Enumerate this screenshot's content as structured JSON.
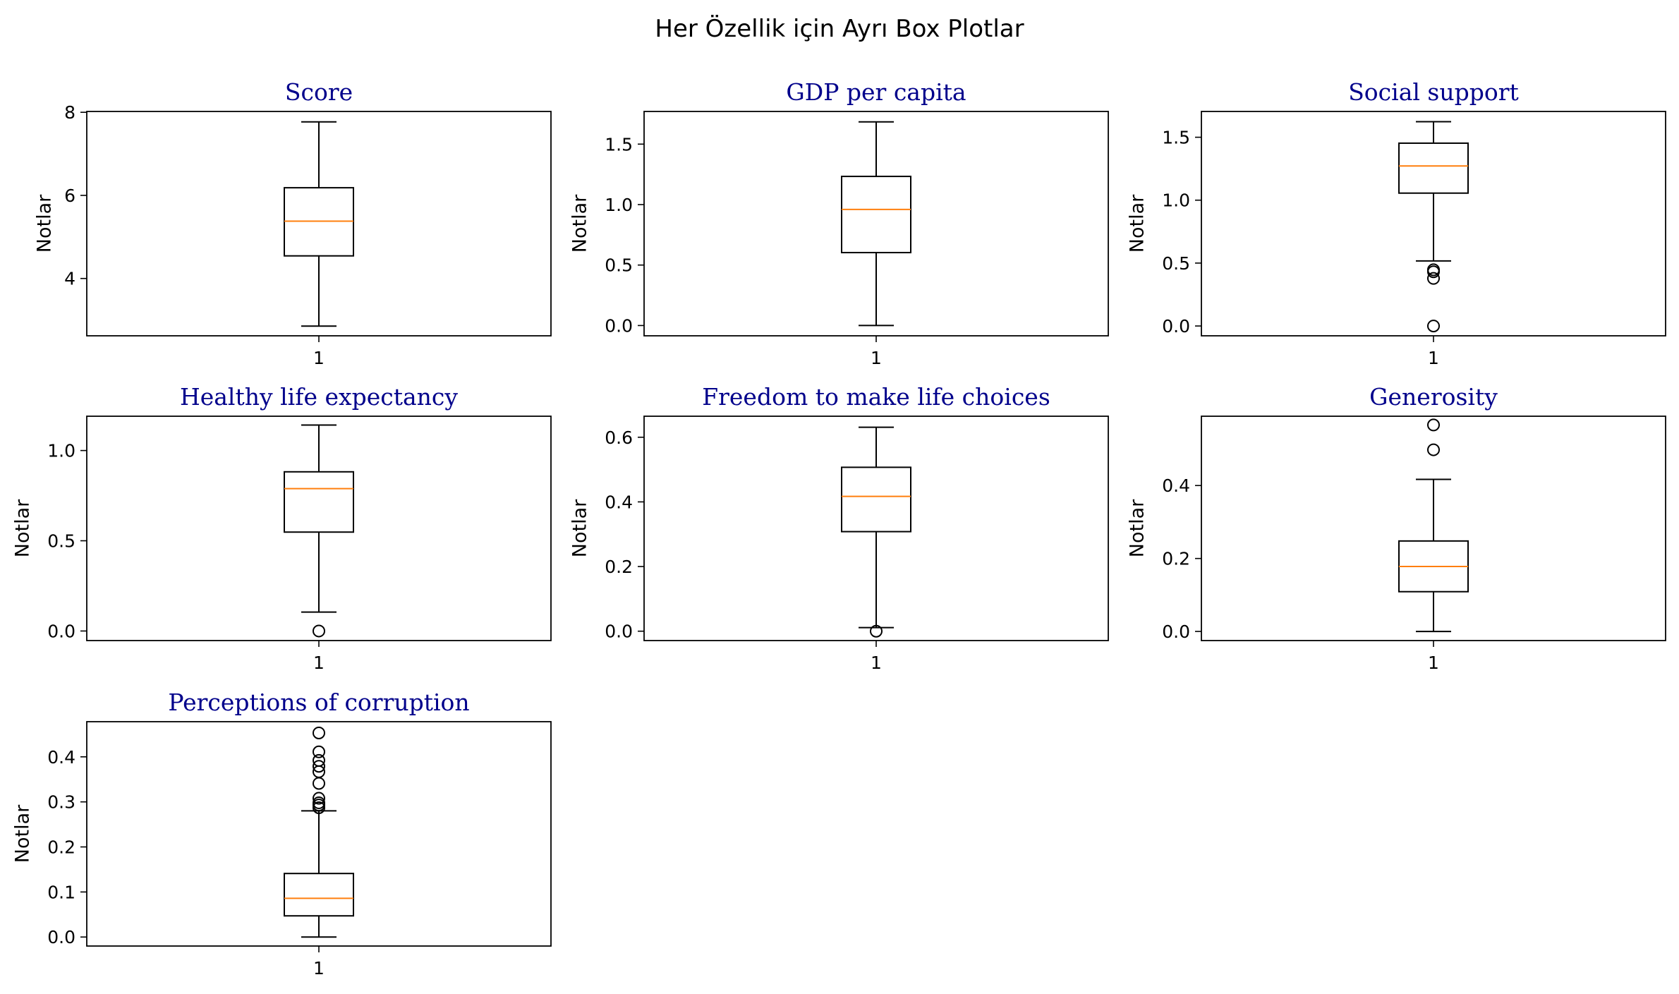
{
  "figure_title": "Her Özellik için Ayrı Box Plotlar",
  "colors": {
    "title": "#00008b",
    "median": "#ff7f0e",
    "box": "#000000"
  },
  "chart_data": [
    {
      "type": "box",
      "title": "Score",
      "ylabel": "Notlar",
      "xticks": [
        "1"
      ],
      "ylim": [
        2.62,
        8.02
      ],
      "yticks": [
        4,
        6,
        8
      ],
      "ytick_labels": [
        "4",
        "6",
        "8"
      ],
      "whisker_low": 2.853,
      "q1": 4.544,
      "median": 5.38,
      "q3": 6.184,
      "whisker_high": 7.769,
      "outliers": []
    },
    {
      "type": "box",
      "title": "GDP per capita",
      "ylabel": "Notlar",
      "xticks": [
        "1"
      ],
      "ylim": [
        -0.085,
        1.77
      ],
      "yticks": [
        0.0,
        0.5,
        1.0,
        1.5
      ],
      "ytick_labels": [
        "0.0",
        "0.5",
        "1.0",
        "1.5"
      ],
      "whisker_low": 0.0,
      "q1": 0.603,
      "median": 0.96,
      "q3": 1.233,
      "whisker_high": 1.684,
      "outliers": []
    },
    {
      "type": "box",
      "title": "Social support",
      "ylabel": "Notlar",
      "xticks": [
        "1"
      ],
      "ylim": [
        -0.078,
        1.705
      ],
      "yticks": [
        0.0,
        0.5,
        1.0,
        1.5
      ],
      "ytick_labels": [
        "0.0",
        "0.5",
        "1.0",
        "1.5"
      ],
      "whisker_low": 0.517,
      "q1": 1.056,
      "median": 1.272,
      "q3": 1.453,
      "whisker_high": 1.624,
      "outliers": [
        0.0,
        0.378,
        0.431,
        0.447
      ]
    },
    {
      "type": "box",
      "title": "Healthy life expectancy",
      "ylabel": "Notlar",
      "xticks": [
        "1"
      ],
      "ylim": [
        -0.053,
        1.19
      ],
      "yticks": [
        0.0,
        0.5,
        1.0
      ],
      "ytick_labels": [
        "0.0",
        "0.5",
        "1.0"
      ],
      "whisker_low": 0.105,
      "q1": 0.548,
      "median": 0.789,
      "q3": 0.882,
      "whisker_high": 1.141,
      "outliers": [
        0.0
      ]
    },
    {
      "type": "box",
      "title": "Freedom to make life choices",
      "ylabel": "Notlar",
      "xticks": [
        "1"
      ],
      "ylim": [
        -0.029,
        0.665
      ],
      "yticks": [
        0.0,
        0.2,
        0.4,
        0.6
      ],
      "ytick_labels": [
        "0.0",
        "0.2",
        "0.4",
        "0.6"
      ],
      "whisker_low": 0.011,
      "q1": 0.308,
      "median": 0.417,
      "q3": 0.507,
      "whisker_high": 0.631,
      "outliers": [
        0.0
      ]
    },
    {
      "type": "box",
      "title": "Generosity",
      "ylabel": "Notlar",
      "xticks": [
        "1"
      ],
      "ylim": [
        -0.025,
        0.59
      ],
      "yticks": [
        0.0,
        0.2,
        0.4
      ],
      "ytick_labels": [
        "0.0",
        "0.2",
        "0.4"
      ],
      "whisker_low": 0.0,
      "q1": 0.109,
      "median": 0.178,
      "q3": 0.248,
      "whisker_high": 0.417,
      "outliers": [
        0.498,
        0.566
      ]
    },
    {
      "type": "box",
      "title": "Perceptions of corruption",
      "ylabel": "Notlar",
      "xticks": [
        "1"
      ],
      "ylim": [
        -0.02,
        0.478
      ],
      "yticks": [
        0.0,
        0.1,
        0.2,
        0.3,
        0.4
      ],
      "ytick_labels": [
        "0.0",
        "0.1",
        "0.2",
        "0.3",
        "0.4"
      ],
      "whisker_low": 0.0,
      "q1": 0.047,
      "median": 0.086,
      "q3": 0.141,
      "whisker_high": 0.28,
      "outliers": [
        0.287,
        0.293,
        0.298,
        0.308,
        0.341,
        0.367,
        0.379,
        0.392,
        0.411,
        0.453
      ]
    }
  ]
}
